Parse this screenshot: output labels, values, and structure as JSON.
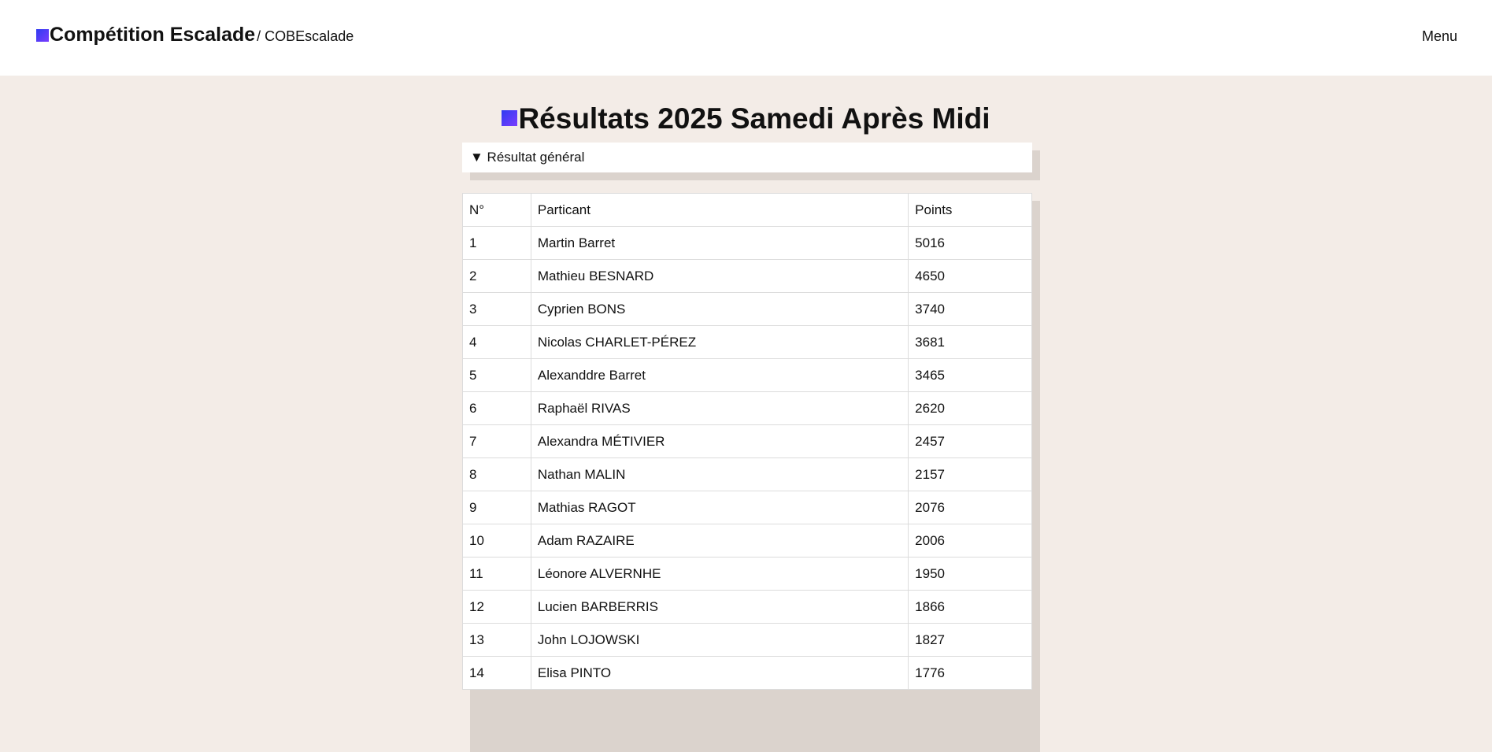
{
  "header": {
    "brand_title": "Compétition Escalade",
    "brand_sub": "/ COBEscalade",
    "menu_label": "Menu"
  },
  "page": {
    "title": "Résultats 2025 Samedi Après Midi"
  },
  "section": {
    "summary": "▼ Résultat général"
  },
  "table": {
    "headers": [
      "N°",
      "Particant",
      "Points"
    ],
    "rows": [
      [
        "1",
        "Martin Barret",
        "5016"
      ],
      [
        "2",
        "Mathieu BESNARD",
        "4650"
      ],
      [
        "3",
        "Cyprien BONS",
        "3740"
      ],
      [
        "4",
        "Nicolas CHARLET-PÉREZ",
        "3681"
      ],
      [
        "5",
        "Alexanddre Barret",
        "3465"
      ],
      [
        "6",
        "Raphaël RIVAS",
        "2620"
      ],
      [
        "7",
        "Alexandra MÉTIVIER",
        "2457"
      ],
      [
        "8",
        "Nathan MALIN",
        "2157"
      ],
      [
        "9",
        "Mathias RAGOT",
        "2076"
      ],
      [
        "10",
        "Adam RAZAIRE",
        "2006"
      ],
      [
        "11",
        "Léonore ALVERNHE",
        "1950"
      ],
      [
        "12",
        "Lucien BARBERRIS",
        "1866"
      ],
      [
        "13",
        "John LOJOWSKI",
        "1827"
      ],
      [
        "14",
        "Elisa PINTO",
        "1776"
      ]
    ]
  }
}
